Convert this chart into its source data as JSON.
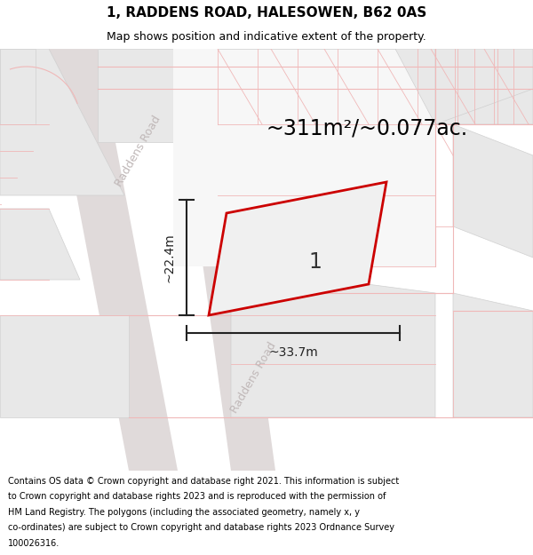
{
  "title": "1, RADDENS ROAD, HALESOWEN, B62 0AS",
  "subtitle": "Map shows position and indicative extent of the property.",
  "area_text": "~311m²/~0.077ac.",
  "label_number": "1",
  "width_label": "~33.7m",
  "height_label": "~22.4m",
  "road_label1": "Raddens Road",
  "road_label2": "Raddens Road",
  "footer_lines": [
    "Contains OS data © Crown copyright and database right 2021. This information is subject",
    "to Crown copyright and database rights 2023 and is reproduced with the permission of",
    "HM Land Registry. The polygons (including the associated geometry, namely x, y",
    "co-ordinates) are subject to Crown copyright and database rights 2023 Ordnance Survey",
    "100026316."
  ],
  "bg_color": "#f7f7f7",
  "block_color": "#e8e8e8",
  "road_strip_color": "#e0dada",
  "plot_fill": "#f0f0f0",
  "plot_edge": "#cc0000",
  "road_line_color": "#f0b8b8",
  "dim_line_color": "#222222",
  "title_color": "#000000",
  "road_text_color": "#c0b8b8",
  "footer_color": "#000000",
  "figsize": [
    6.0,
    6.25
  ],
  "dpi": 100,
  "title_fontsize": 11,
  "subtitle_fontsize": 9,
  "area_fontsize": 17,
  "label_fontsize": 17,
  "dim_fontsize": 10,
  "road_label_fontsize": 9,
  "footer_fontsize": 7
}
